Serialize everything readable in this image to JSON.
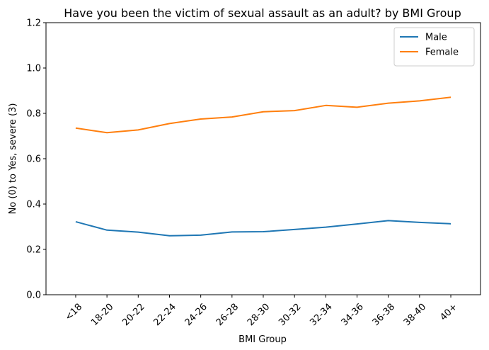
{
  "chart_data": {
    "type": "line",
    "title": "Have you been the victim of sexual assault as an adult? by BMI Group",
    "xlabel": "BMI Group",
    "ylabel": "No (0) to Yes, severe (3)",
    "categories": [
      "<18",
      "18-20",
      "20-22",
      "22-24",
      "24-26",
      "26-28",
      "28-30",
      "30-32",
      "32-34",
      "34-36",
      "36-38",
      "38-40",
      "40+"
    ],
    "ylim": [
      0,
      1.2
    ],
    "yticks": [
      "0.0",
      "0.2",
      "0.4",
      "0.6",
      "0.8",
      "1.0",
      "1.2"
    ],
    "grid": false,
    "legend_position": "top-right",
    "series": [
      {
        "name": "Male",
        "color": "#1f77b4",
        "values": [
          0.322,
          0.285,
          0.276,
          0.26,
          0.263,
          0.277,
          0.278,
          0.288,
          0.298,
          0.312,
          0.327,
          0.319,
          0.313
        ]
      },
      {
        "name": "Female",
        "color": "#ff7f0e",
        "values": [
          0.735,
          0.715,
          0.727,
          0.755,
          0.775,
          0.784,
          0.807,
          0.812,
          0.835,
          0.827,
          0.845,
          0.855,
          0.871
        ]
      }
    ]
  }
}
